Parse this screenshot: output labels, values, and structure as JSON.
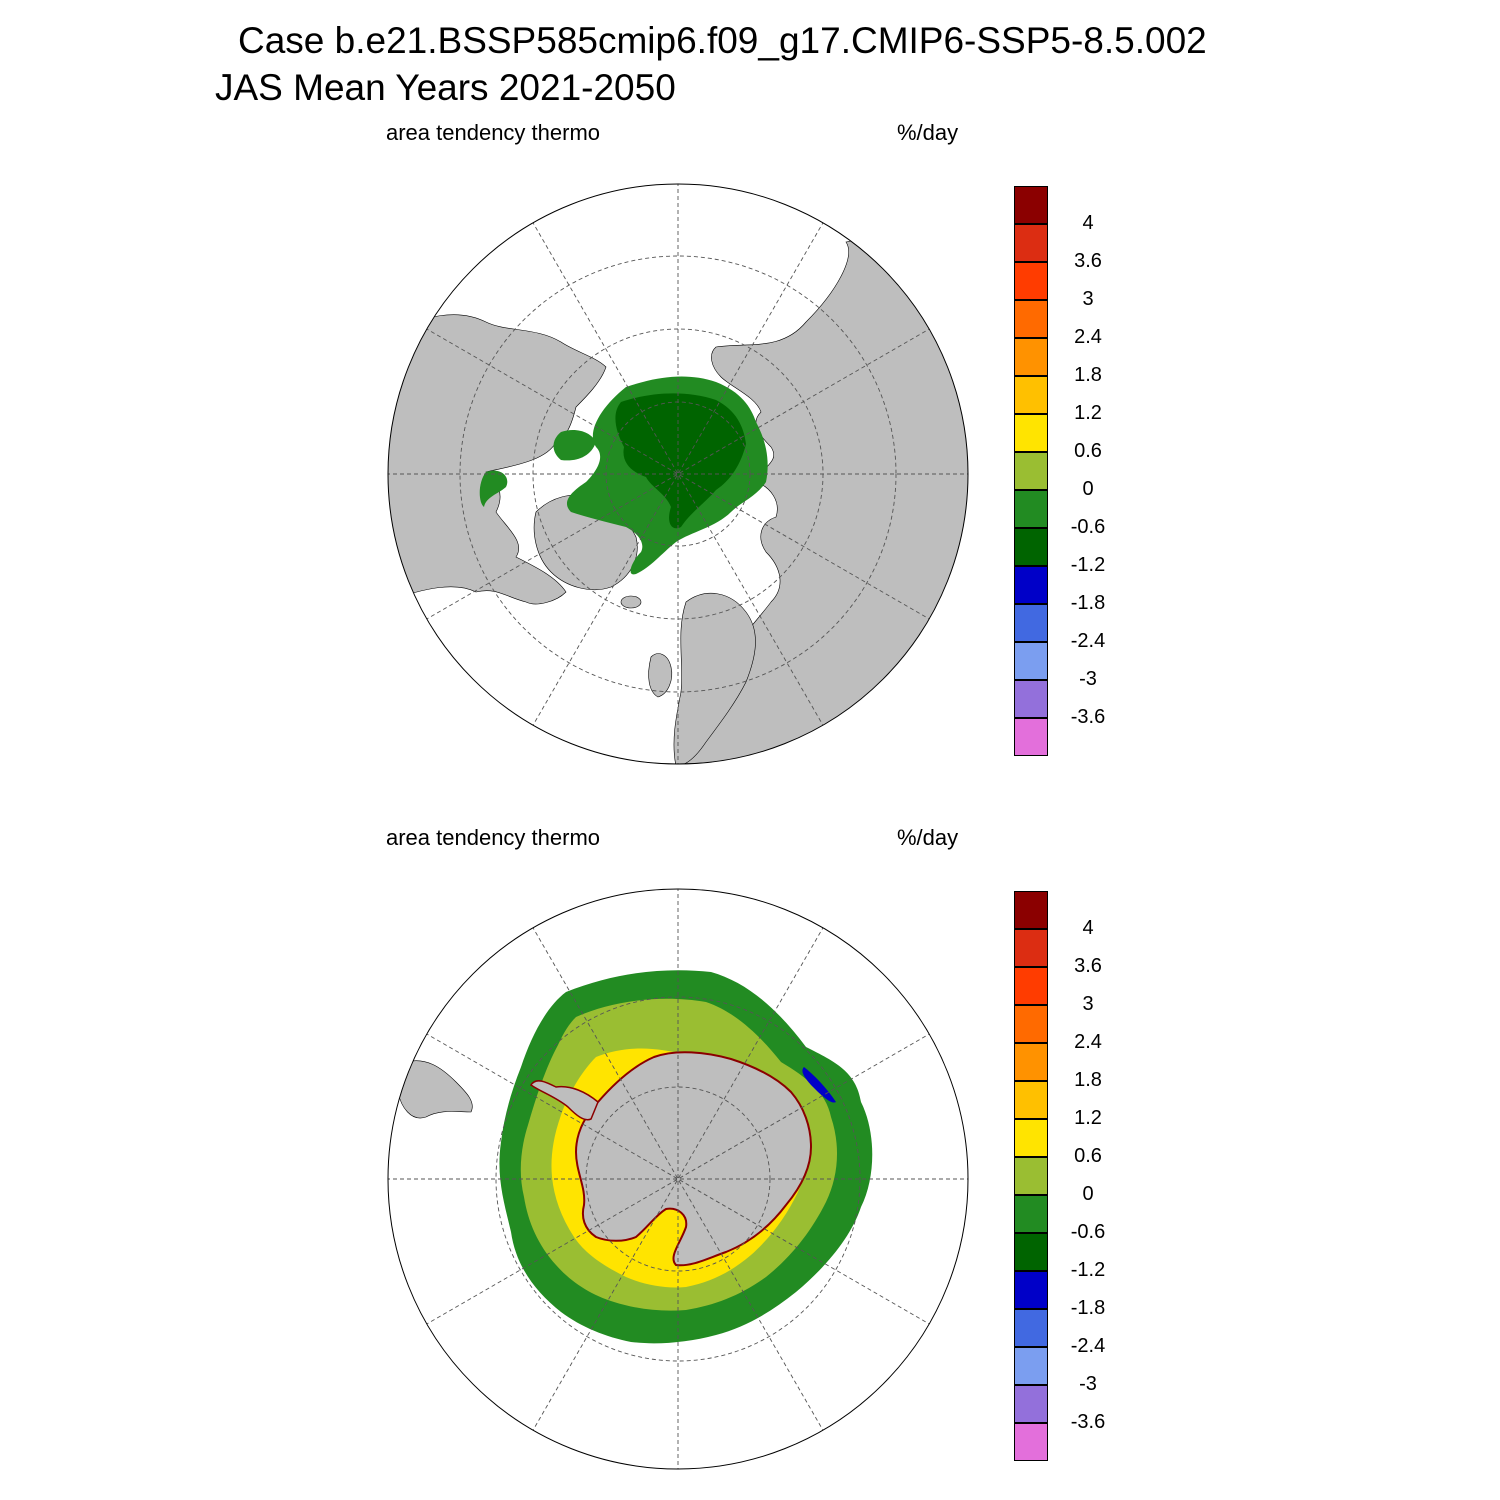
{
  "title": {
    "line1": "Case b.e21.BSSP585cmip6.f09_g17.CMIP6-SSP5-8.5.002",
    "line2": "JAS Mean    Years 2021-2050"
  },
  "panels": [
    {
      "id": "north",
      "hemisphere": "NH",
      "variable": "area tendency thermo",
      "units": "%/day"
    },
    {
      "id": "south",
      "hemisphere": "SH",
      "variable": "area tendency thermo",
      "units": "%/day"
    }
  ],
  "colorbar": {
    "labels": [
      "4",
      "3.6",
      "3",
      "2.4",
      "1.8",
      "1.2",
      "0.6",
      "0",
      "-0.6",
      "-1.2",
      "-1.8",
      "-2.4",
      "-3",
      "-3.6"
    ],
    "colors": [
      "#8b0000",
      "#dc2d12",
      "#ff3c00",
      "#ff6a00",
      "#ff9200",
      "#ffc000",
      "#ffe400",
      "#9abe32",
      "#228b22",
      "#006400",
      "#0000c8",
      "#4169e1",
      "#7b9ef0",
      "#9370db",
      "#e36fdb"
    ]
  },
  "colors": {
    "land": "#bebebe",
    "ocean": "#ffffff",
    "grid": "#555555"
  }
}
